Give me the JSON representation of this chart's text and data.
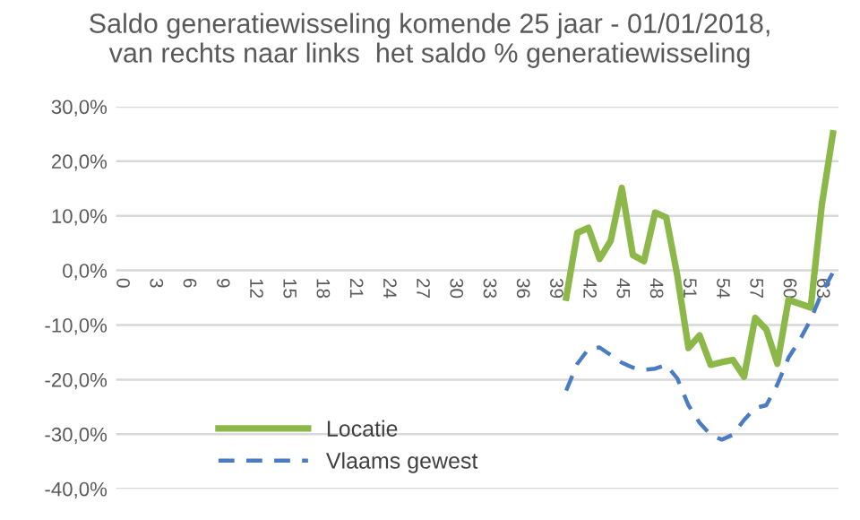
{
  "chart_data": {
    "type": "line",
    "title": "Saldo generatiewisseling komende 25 jaar - 01/01/2018,\nvan rechts naar links  het saldo % generatiewisseling",
    "categories": [
      "0",
      null,
      null,
      "3",
      null,
      null,
      "6",
      null,
      null,
      "9",
      null,
      null,
      "12",
      null,
      null,
      "15",
      null,
      null,
      "18",
      null,
      null,
      "21",
      null,
      null,
      "24",
      null,
      null,
      "27",
      null,
      null,
      "30",
      null,
      null,
      "33",
      null,
      null,
      "36",
      null,
      null,
      "39",
      null,
      null,
      "42",
      null,
      null,
      "45",
      null,
      null,
      "48",
      null,
      null,
      "51",
      null,
      null,
      "54",
      null,
      null,
      "57",
      null,
      null,
      "60",
      null,
      null,
      "63",
      null
    ],
    "series": [
      {
        "name": "Locatie",
        "color": "#8cb84a",
        "line_style": "solid",
        "values": [
          null,
          null,
          null,
          null,
          null,
          null,
          null,
          null,
          null,
          null,
          null,
          null,
          null,
          null,
          null,
          null,
          null,
          null,
          null,
          null,
          null,
          null,
          null,
          null,
          null,
          null,
          null,
          null,
          null,
          null,
          null,
          null,
          null,
          null,
          null,
          null,
          null,
          null,
          null,
          null,
          -5.0,
          6.9,
          7.8,
          2.1,
          5.4,
          15.1,
          2.8,
          1.7,
          10.6,
          9.7,
          -1.0,
          -14.2,
          -11.9,
          -17.3,
          -16.8,
          -16.4,
          -19.5,
          -8.7,
          -10.8,
          -17.1,
          -5.4,
          -6.1,
          -6.8,
          12.0,
          25.1
        ]
      },
      {
        "name": "Vlaams gewest",
        "color": "#4a7cc4",
        "line_style": "dashed",
        "values": [
          null,
          null,
          null,
          null,
          null,
          null,
          null,
          null,
          null,
          null,
          null,
          null,
          null,
          null,
          null,
          null,
          null,
          null,
          null,
          null,
          null,
          null,
          null,
          null,
          null,
          null,
          null,
          null,
          null,
          null,
          null,
          null,
          null,
          null,
          null,
          null,
          null,
          null,
          null,
          null,
          -22.0,
          -17.1,
          -14.4,
          -14.1,
          -15.5,
          -16.9,
          -17.8,
          -18.2,
          -18.0,
          -17.3,
          -19.8,
          -24.7,
          -27.9,
          -30.1,
          -31.0,
          -30.1,
          -27.4,
          -25.2,
          -24.7,
          -20.9,
          -16.0,
          -12.8,
          -9.0,
          -4.1,
          -0.4
        ]
      }
    ],
    "ylim": [
      -40,
      30
    ],
    "yticks": [
      {
        "value": -40,
        "label": "-40,0%"
      },
      {
        "value": -30,
        "label": "-30,0%"
      },
      {
        "value": -20,
        "label": "-20,0%"
      },
      {
        "value": -10,
        "label": "-10,0%"
      },
      {
        "value": 0,
        "label": "0,0%"
      },
      {
        "value": 10,
        "label": "10,0%"
      },
      {
        "value": 20,
        "label": "20,0%"
      },
      {
        "value": 30,
        "label": "30,0%"
      }
    ],
    "grid": "y",
    "legend": "bottom left",
    "marker": "none"
  }
}
